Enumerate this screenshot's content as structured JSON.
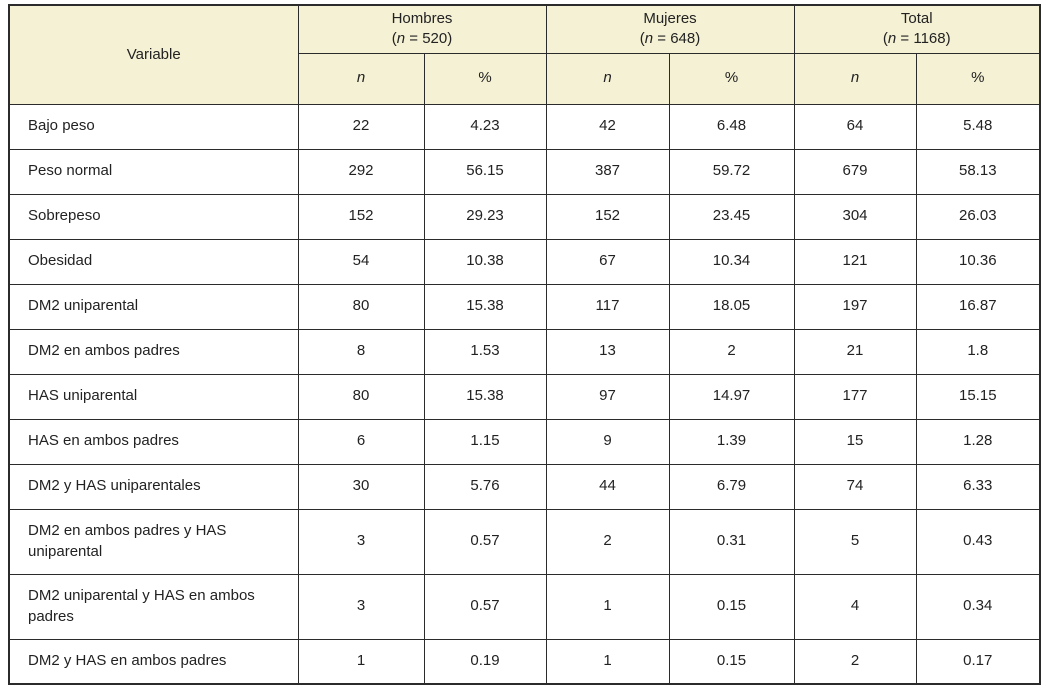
{
  "table": {
    "colors": {
      "header_bg": "#F5F1D4",
      "border": "#2b2b2b",
      "text": "#222222"
    },
    "header": {
      "variable_label": "Variable",
      "groups": [
        {
          "title": "Hombres",
          "sub_prefix": "(",
          "sub_italic": "n",
          "sub_rest": " = 520)"
        },
        {
          "title": "Mujeres",
          "sub_prefix": "(",
          "sub_italic": "n",
          "sub_rest": " = 648)"
        },
        {
          "title": "Total",
          "sub_prefix": "(",
          "sub_italic": "n",
          "sub_rest": " = 1168)"
        }
      ],
      "sub_columns": {
        "n_label": "n",
        "pct_label": "%"
      }
    },
    "rows": [
      {
        "label": "Bajo peso",
        "cells": [
          "22",
          "4.23",
          "42",
          "6.48",
          "64",
          "5.48"
        ]
      },
      {
        "label": "Peso normal",
        "cells": [
          "292",
          "56.15",
          "387",
          "59.72",
          "679",
          "58.13"
        ]
      },
      {
        "label": "Sobrepeso",
        "cells": [
          "152",
          "29.23",
          "152",
          "23.45",
          "304",
          "26.03"
        ]
      },
      {
        "label": "Obesidad",
        "cells": [
          "54",
          "10.38",
          "67",
          "10.34",
          "121",
          "10.36"
        ]
      },
      {
        "label": "DM2 uniparental",
        "cells": [
          "80",
          "15.38",
          "117",
          "18.05",
          "197",
          "16.87"
        ]
      },
      {
        "label": "DM2 en ambos padres",
        "cells": [
          "8",
          "1.53",
          "13",
          "2",
          "21",
          "1.8"
        ]
      },
      {
        "label": "HAS uniparental",
        "cells": [
          "80",
          "15.38",
          "97",
          "14.97",
          "177",
          "15.15"
        ]
      },
      {
        "label": "HAS en ambos padres",
        "cells": [
          "6",
          "1.15",
          "9",
          "1.39",
          "15",
          "1.28"
        ]
      },
      {
        "label": "DM2 y HAS uniparentales",
        "cells": [
          "30",
          "5.76",
          "44",
          "6.79",
          "74",
          "6.33"
        ]
      },
      {
        "label": "DM2 en ambos padres y HAS uniparental",
        "cells": [
          "3",
          "0.57",
          "2",
          "0.31",
          "5",
          "0.43"
        ]
      },
      {
        "label": "DM2 uniparental y HAS en ambos padres",
        "cells": [
          "3",
          "0.57",
          "1",
          "0.15",
          "4",
          "0.34"
        ]
      },
      {
        "label": "DM2 y HAS en ambos padres",
        "cells": [
          "1",
          "0.19",
          "1",
          "0.15",
          "2",
          "0.17"
        ]
      }
    ]
  }
}
